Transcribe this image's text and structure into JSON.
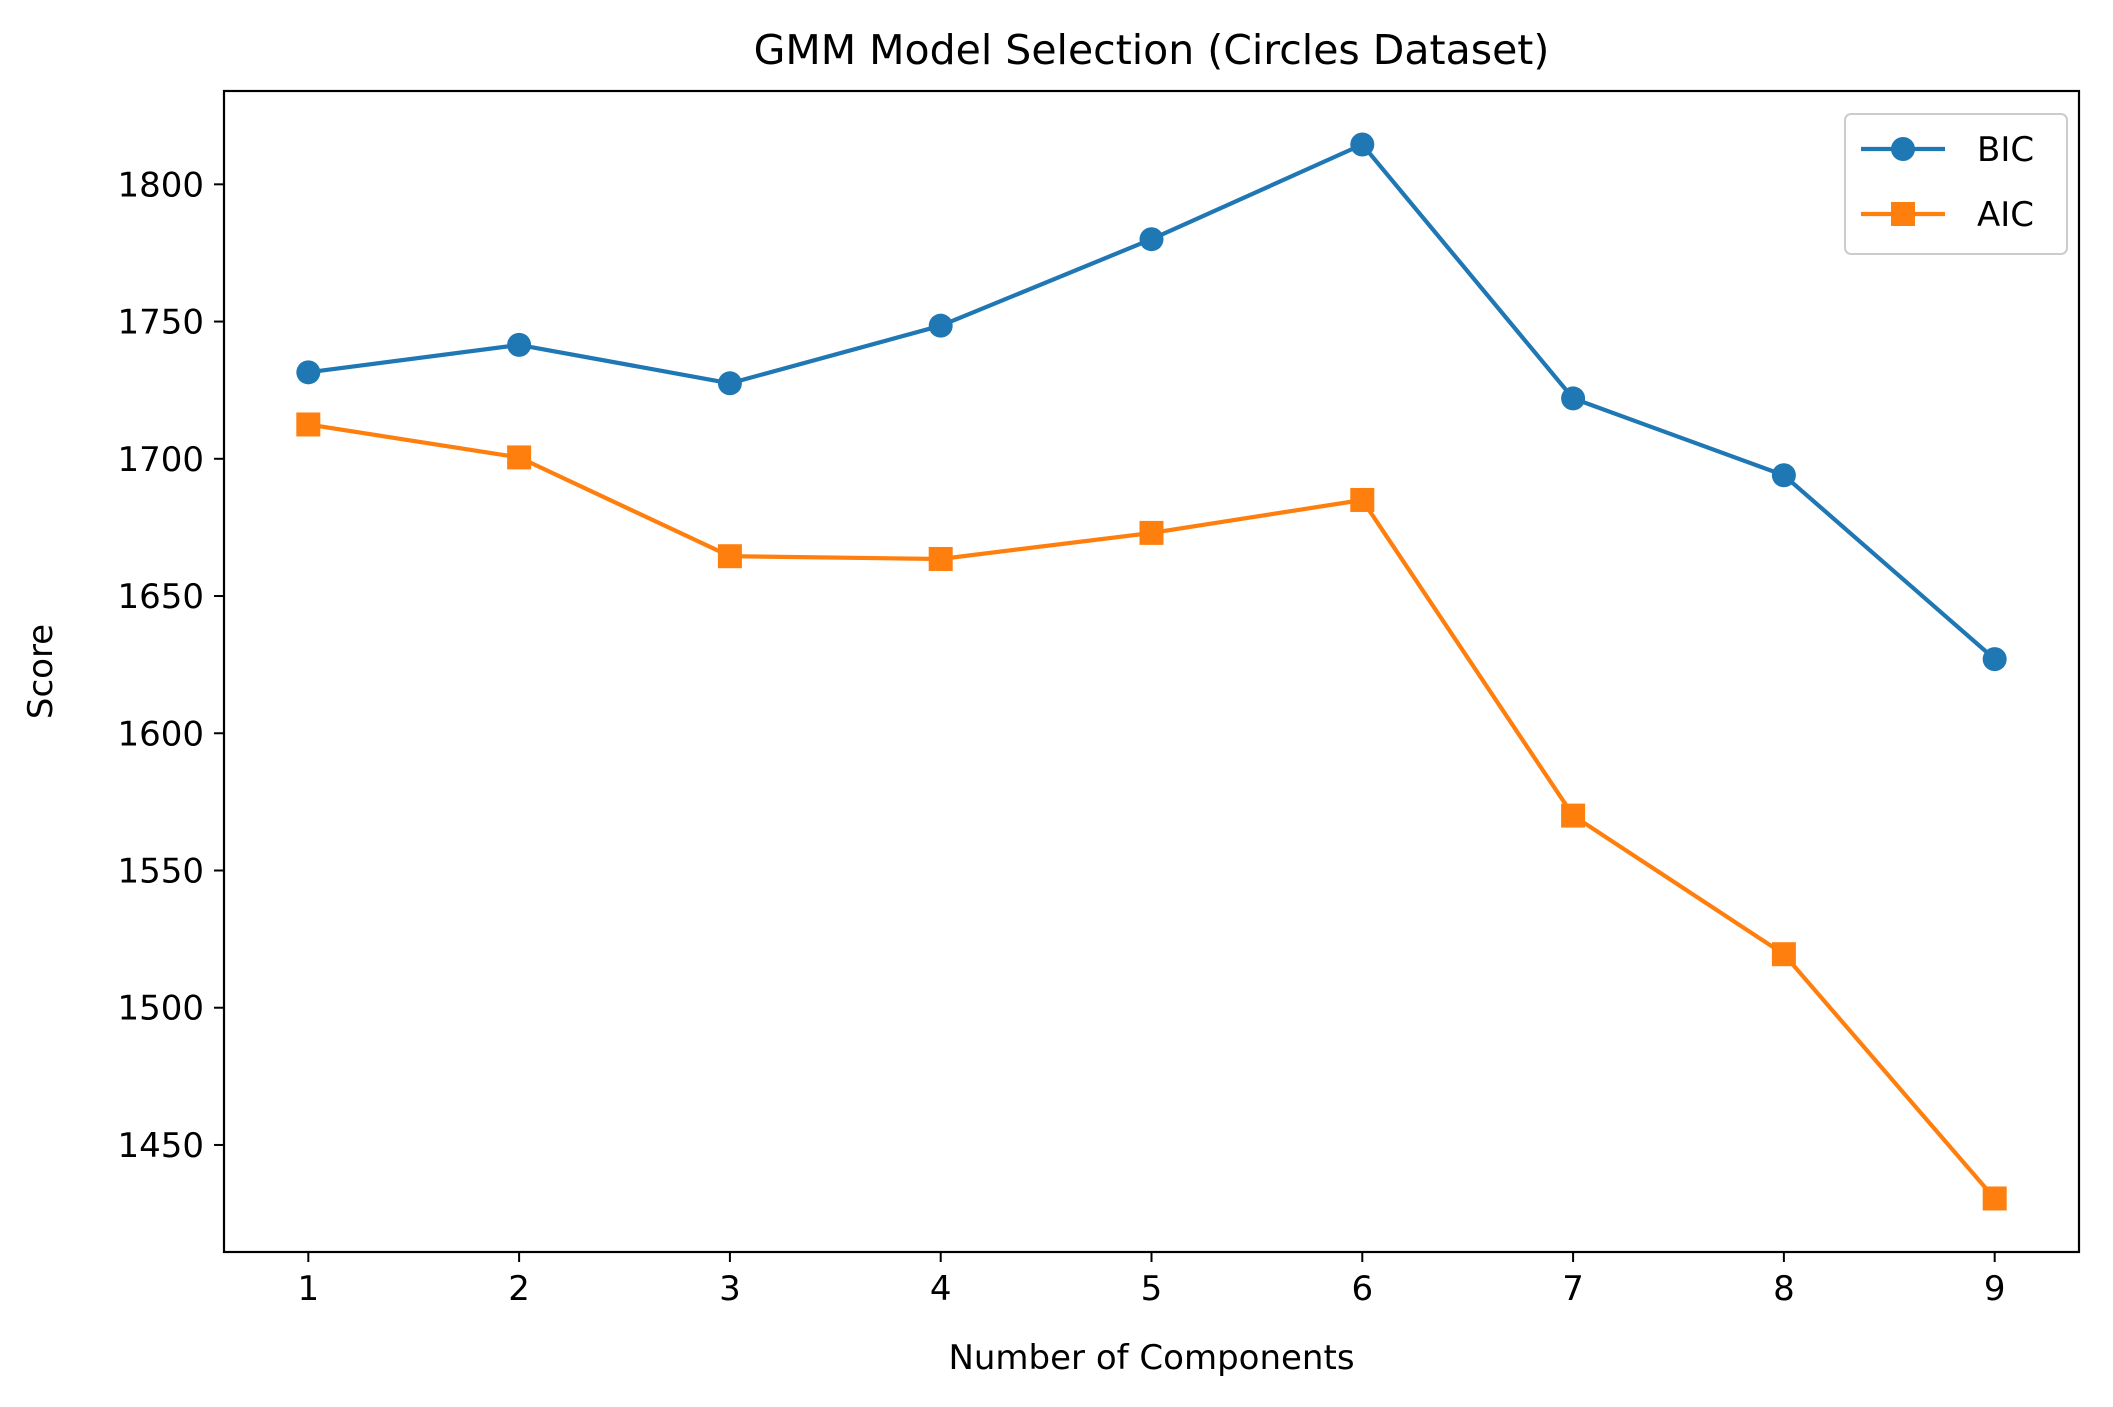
{
  "chart_data": {
    "type": "line",
    "title": "GMM Model Selection (Circles Dataset)",
    "xlabel": "Number of Components",
    "ylabel": "Score",
    "x": [
      1,
      2,
      3,
      4,
      5,
      6,
      7,
      8,
      9
    ],
    "xticks": [
      "1",
      "2",
      "3",
      "4",
      "5",
      "6",
      "7",
      "8",
      "9"
    ],
    "xlim": [
      0.6,
      9.4
    ],
    "ylim": [
      1411,
      1834
    ],
    "yticks": [
      1450,
      1500,
      1550,
      1600,
      1650,
      1700,
      1750,
      1800
    ],
    "ytick_labels": [
      "1450",
      "1500",
      "1550",
      "1600",
      "1650",
      "1700",
      "1750",
      "1800"
    ],
    "grid": false,
    "legend_position": "top-right",
    "series": [
      {
        "name": "BIC",
        "color": "#1f77b4",
        "marker": "circle",
        "values": [
          1731.5,
          1741.5,
          1727.5,
          1748.5,
          1780,
          1814.5,
          1722,
          1694,
          1627
        ]
      },
      {
        "name": "AIC",
        "color": "#ff7f0e",
        "marker": "square",
        "values": [
          1712.5,
          1700.5,
          1664.5,
          1663.5,
          1673,
          1685,
          1570,
          1519.5,
          1430.5
        ]
      }
    ]
  }
}
